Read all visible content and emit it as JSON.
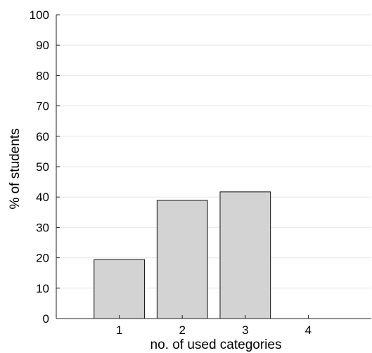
{
  "chart_data": {
    "type": "bar",
    "categories": [
      "1",
      "2",
      "3",
      "4"
    ],
    "values": [
      19.4,
      38.9,
      41.7,
      0
    ],
    "title": "",
    "xlabel": "no. of used categories",
    "ylabel": "% of students",
    "ylim": [
      0,
      100
    ],
    "xlim": [
      0,
      5
    ],
    "yticks": [
      0,
      10,
      20,
      30,
      40,
      50,
      60,
      70,
      80,
      90,
      100
    ],
    "grid": "horizontal",
    "colors": {
      "bar_fill": "#d3d3d3",
      "bar_edge": "#111111",
      "grid": "#e6e6e6"
    }
  }
}
